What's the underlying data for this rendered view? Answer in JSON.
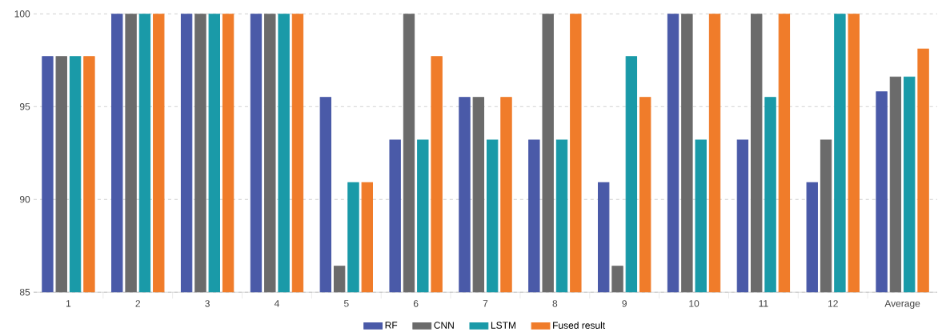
{
  "chart_data": {
    "type": "bar",
    "categories": [
      "1",
      "2",
      "3",
      "4",
      "5",
      "6",
      "7",
      "8",
      "9",
      "10",
      "11",
      "12",
      "Average"
    ],
    "series": [
      {
        "name": "RF",
        "color": "#4a5aa8",
        "values": [
          97.7,
          100,
          100,
          100,
          95.5,
          93.2,
          95.5,
          93.2,
          90.9,
          100,
          93.2,
          90.9,
          95.8
        ]
      },
      {
        "name": "CNN",
        "color": "#6b6b6b",
        "values": [
          97.7,
          100,
          100,
          100,
          86.4,
          100,
          95.5,
          100,
          86.4,
          100,
          100,
          93.2,
          96.6
        ]
      },
      {
        "name": "LSTM",
        "color": "#1a9aa8",
        "values": [
          97.7,
          100,
          100,
          100,
          90.9,
          93.2,
          93.2,
          93.2,
          97.7,
          93.2,
          95.5,
          100,
          96.6
        ]
      },
      {
        "name": "Fused result",
        "color": "#f07c2a",
        "values": [
          97.7,
          100,
          100,
          100,
          90.9,
          97.7,
          95.5,
          100,
          95.5,
          100,
          100,
          100,
          98.1
        ]
      }
    ],
    "ylim": [
      85,
      100
    ],
    "yticks": [
      85,
      90,
      95,
      100
    ],
    "grid": "y",
    "legend": "bottom"
  }
}
